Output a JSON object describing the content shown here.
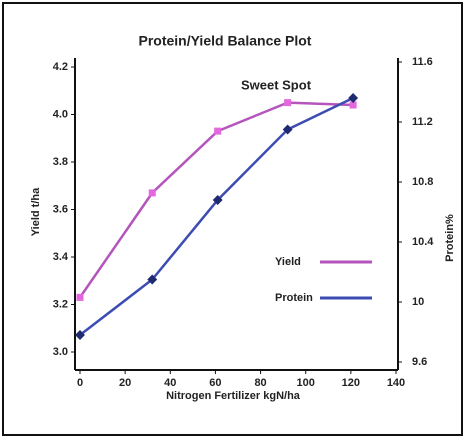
{
  "chart_data": {
    "type": "line",
    "title": "Protein/Yield Balance Plot",
    "annotation": "Sweet Spot",
    "x_label": "Nitrogen Fertilizer kgN/ha",
    "y_label": "Yield t/ha",
    "y2_label": "Protein%",
    "x": [
      0,
      32,
      61,
      92,
      121
    ],
    "xlim": [
      0,
      140
    ],
    "xticks": [
      0,
      20,
      40,
      60,
      80,
      100,
      120,
      140
    ],
    "ylim": [
      3.0,
      4.2
    ],
    "yticks": [
      {
        "value": 3.0,
        "label": "3.0"
      },
      3.2,
      3.4,
      3.6,
      3.8,
      {
        "value": 4.0,
        "label": "4.0"
      },
      4.2
    ],
    "y2lim": [
      9.6,
      11.6
    ],
    "y2ticks": [
      9.6,
      10,
      10.4,
      10.8,
      11.2,
      11.6
    ],
    "legend": "lower right",
    "series": [
      {
        "name": "Yield",
        "color": "#b455bd",
        "marker_color": "#e368de",
        "values": [
          3.23,
          3.67,
          3.93,
          4.05,
          4.04
        ]
      },
      {
        "name": "Protein",
        "color": "#3d4cb3",
        "marker_color": "#1f2a70",
        "axis": "y2",
        "values": [
          9.78,
          10.15,
          10.68,
          11.15,
          11.36
        ]
      }
    ]
  }
}
